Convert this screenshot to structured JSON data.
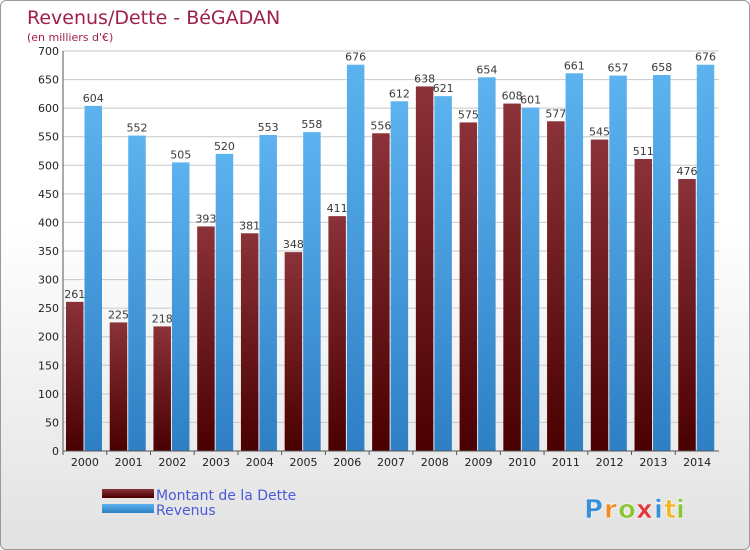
{
  "chart_data": {
    "type": "bar",
    "title": "Revenus/Dette - BéGADAN",
    "subtitle": "(en milliers d'€)",
    "categories": [
      "2000",
      "2001",
      "2002",
      "2003",
      "2004",
      "2005",
      "2006",
      "2007",
      "2008",
      "2009",
      "2010",
      "2011",
      "2012",
      "2013",
      "2014"
    ],
    "series": [
      {
        "name": "Montant de la Dette",
        "color": "#6b1418",
        "values": [
          261,
          225,
          218,
          393,
          381,
          348,
          411,
          556,
          638,
          575,
          608,
          577,
          545,
          511,
          476
        ]
      },
      {
        "name": "Revenus",
        "color": "#4a9fe0",
        "values": [
          604,
          552,
          505,
          520,
          553,
          558,
          676,
          612,
          621,
          654,
          601,
          661,
          657,
          658,
          676
        ]
      }
    ],
    "ylim": [
      0,
      700
    ],
    "yticks": [
      "0",
      "50",
      "100",
      "150",
      "200",
      "250",
      "300",
      "350",
      "400",
      "450",
      "500",
      "550",
      "600",
      "650",
      "700"
    ],
    "grid": true,
    "legend_position": "bottom-left"
  },
  "logo": {
    "letters": [
      "P",
      "r",
      "o",
      "x",
      "i",
      "t",
      "i"
    ],
    "colors": [
      "#3b8fd8",
      "#f08c2a",
      "#8cc43c",
      "#e03a3a",
      "#3b8fd8",
      "#f0b82a",
      "#8cc43c"
    ]
  }
}
